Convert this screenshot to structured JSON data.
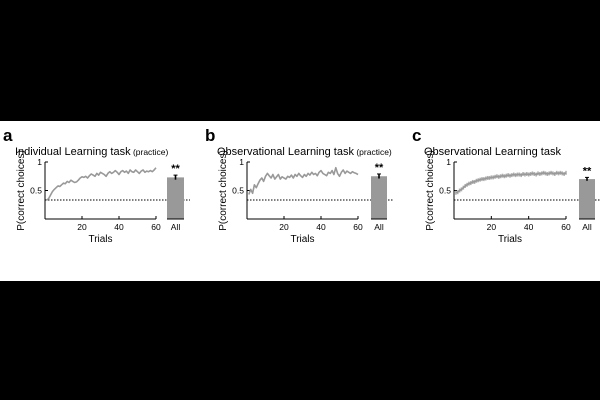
{
  "chart_data": [
    {
      "type": "line",
      "panel": "a",
      "title": "Individual Learning task",
      "title_suffix": "(practice)",
      "xlabel": "Trials",
      "ylabel": "P(correct choices)",
      "xlim": [
        0,
        60
      ],
      "ylim": [
        0,
        1
      ],
      "xticks": [
        "20",
        "40",
        "60"
      ],
      "yticks": [
        "0.5",
        "1"
      ],
      "chance": 0.333,
      "error_band": false,
      "series": [
        {
          "x": [
            1,
            2,
            3,
            4,
            5,
            6,
            7,
            8,
            9,
            10,
            11,
            12,
            13,
            14,
            15,
            16,
            17,
            18,
            19,
            20,
            21,
            22,
            23,
            24,
            25,
            26,
            27,
            28,
            29,
            30,
            31,
            32,
            33,
            34,
            35,
            36,
            37,
            38,
            39,
            40,
            41,
            42,
            43,
            44,
            45,
            46,
            47,
            48,
            49,
            50,
            51,
            52,
            53,
            54,
            55,
            56,
            57,
            58,
            59,
            60
          ],
          "values": [
            0.33,
            0.36,
            0.42,
            0.48,
            0.52,
            0.55,
            0.58,
            0.57,
            0.6,
            0.63,
            0.62,
            0.66,
            0.64,
            0.68,
            0.66,
            0.64,
            0.65,
            0.68,
            0.72,
            0.74,
            0.73,
            0.75,
            0.72,
            0.76,
            0.79,
            0.77,
            0.75,
            0.8,
            0.77,
            0.82,
            0.8,
            0.78,
            0.75,
            0.8,
            0.83,
            0.8,
            0.82,
            0.85,
            0.82,
            0.78,
            0.83,
            0.85,
            0.82,
            0.84,
            0.8,
            0.86,
            0.83,
            0.82,
            0.86,
            0.83,
            0.8,
            0.84,
            0.86,
            0.82,
            0.84,
            0.83,
            0.85,
            0.83,
            0.86,
            0.9
          ]
        }
      ],
      "bar": {
        "category": "All",
        "value": 0.73,
        "error": 0.04,
        "annotation": "**"
      }
    },
    {
      "type": "line",
      "panel": "b",
      "title": "Observational Learning task",
      "title_suffix": "(practice)",
      "xlabel": "Trials",
      "ylabel": "P(correct choices)",
      "xlim": [
        0,
        60
      ],
      "ylim": [
        0,
        1
      ],
      "xticks": [
        "20",
        "40",
        "60"
      ],
      "yticks": [
        "0.5",
        "1"
      ],
      "chance": 0.333,
      "error_band": false,
      "series": [
        {
          "x": [
            1,
            2,
            3,
            4,
            5,
            6,
            7,
            8,
            9,
            10,
            11,
            12,
            13,
            14,
            15,
            16,
            17,
            18,
            19,
            20,
            21,
            22,
            23,
            24,
            25,
            26,
            27,
            28,
            29,
            30,
            31,
            32,
            33,
            34,
            35,
            36,
            37,
            38,
            39,
            40,
            41,
            42,
            43,
            44,
            45,
            46,
            47,
            48,
            49,
            50,
            51,
            52,
            53,
            54,
            55,
            56,
            57,
            58,
            59,
            60
          ],
          "values": [
            0.43,
            0.52,
            0.45,
            0.6,
            0.55,
            0.62,
            0.68,
            0.72,
            0.66,
            0.75,
            0.8,
            0.76,
            0.72,
            0.78,
            0.7,
            0.74,
            0.78,
            0.7,
            0.74,
            0.72,
            0.7,
            0.75,
            0.73,
            0.77,
            0.72,
            0.78,
            0.75,
            0.8,
            0.76,
            0.73,
            0.78,
            0.75,
            0.8,
            0.77,
            0.82,
            0.78,
            0.8,
            0.76,
            0.82,
            0.85,
            0.8,
            0.78,
            0.76,
            0.82,
            0.8,
            0.85,
            0.78,
            0.9,
            0.8,
            0.75,
            0.82,
            0.86,
            0.8,
            0.84,
            0.82,
            0.8,
            0.83,
            0.81,
            0.8,
            0.78
          ]
        }
      ],
      "bar": {
        "category": "All",
        "value": 0.75,
        "error": 0.04,
        "annotation": "**"
      }
    },
    {
      "type": "line",
      "panel": "c",
      "title": "Observational Learning task",
      "title_suffix": "",
      "xlabel": "Trials",
      "ylabel": "P(correct choices)",
      "xlim": [
        0,
        60
      ],
      "ylim": [
        0,
        1
      ],
      "xticks": [
        "20",
        "40",
        "60"
      ],
      "yticks": [
        "0.5",
        "1"
      ],
      "chance": 0.333,
      "error_band": true,
      "series": [
        {
          "x": [
            1,
            2,
            3,
            4,
            5,
            6,
            7,
            8,
            9,
            10,
            11,
            12,
            13,
            14,
            15,
            16,
            17,
            18,
            19,
            20,
            21,
            22,
            23,
            24,
            25,
            26,
            27,
            28,
            29,
            30,
            31,
            32,
            33,
            34,
            35,
            36,
            37,
            38,
            39,
            40,
            41,
            42,
            43,
            44,
            45,
            46,
            47,
            48,
            49,
            50,
            51,
            52,
            53,
            54,
            55,
            56,
            57,
            58,
            59,
            60
          ],
          "values": [
            0.46,
            0.47,
            0.5,
            0.52,
            0.55,
            0.58,
            0.6,
            0.62,
            0.63,
            0.65,
            0.65,
            0.67,
            0.68,
            0.69,
            0.7,
            0.7,
            0.71,
            0.72,
            0.72,
            0.73,
            0.73,
            0.74,
            0.75,
            0.74,
            0.75,
            0.76,
            0.75,
            0.76,
            0.77,
            0.76,
            0.77,
            0.78,
            0.77,
            0.78,
            0.78,
            0.77,
            0.79,
            0.78,
            0.79,
            0.78,
            0.79,
            0.8,
            0.79,
            0.78,
            0.8,
            0.79,
            0.8,
            0.81,
            0.8,
            0.79,
            0.8,
            0.81,
            0.8,
            0.79,
            0.81,
            0.8,
            0.81,
            0.8,
            0.79,
            0.81
          ],
          "error": 0.035
        }
      ],
      "bar": {
        "category": "All",
        "value": 0.7,
        "error": 0.03,
        "annotation": "**"
      }
    }
  ]
}
